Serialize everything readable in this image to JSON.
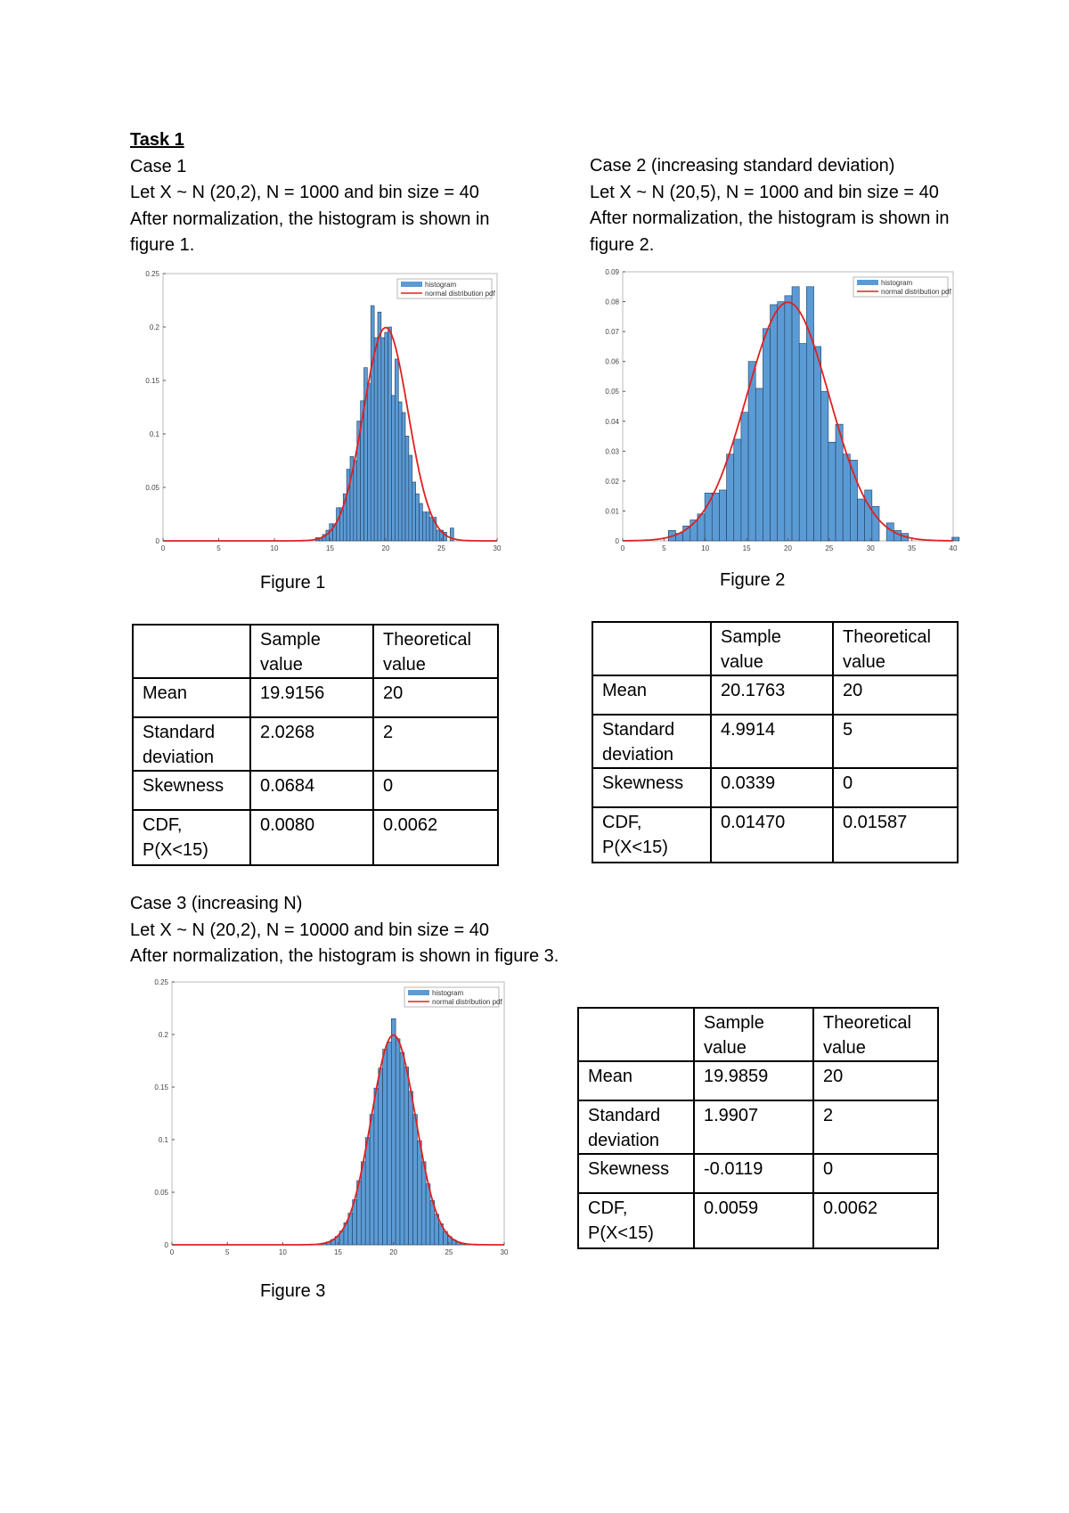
{
  "task_heading": "Task 1",
  "case1": {
    "lines": [
      "Case 1",
      "Let X ~ N (20,2), N = 1000 and bin size = 40",
      "After normalization, the histogram is shown in",
      "figure 1."
    ],
    "caption": "Figure 1",
    "table": {
      "headers": [
        "",
        "Sample value",
        "Theoretical value"
      ],
      "rows": [
        [
          "Mean",
          "19.9156",
          "20"
        ],
        [
          "Standard deviation",
          "2.0268",
          "2"
        ],
        [
          "Skewness",
          "0.0684",
          "0"
        ],
        [
          "CDF, P(X<15)",
          "0.0080",
          "0.0062"
        ]
      ]
    }
  },
  "case2": {
    "lines": [
      "Case 2 (increasing standard deviation)",
      "Let X ~ N (20,5), N = 1000 and bin size = 40",
      "After normalization, the histogram is shown in",
      "figure 2."
    ],
    "caption": "Figure 2",
    "table": {
      "headers": [
        "",
        "Sample value",
        "Theoretical value"
      ],
      "rows": [
        [
          "Mean",
          "20.1763",
          "20"
        ],
        [
          "Standard deviation",
          "4.9914",
          "5"
        ],
        [
          "Skewness",
          "0.0339",
          "0"
        ],
        [
          "CDF, P(X<15)",
          "0.01470",
          "0.01587"
        ]
      ]
    }
  },
  "case3": {
    "lines": [
      "Case 3 (increasing N)",
      "Let X ~ N (20,2), N = 10000 and bin size = 40",
      "After normalization, the histogram is shown in figure 3."
    ],
    "caption": "Figure 3",
    "table": {
      "headers": [
        "",
        "Sample value",
        "Theoretical value"
      ],
      "rows": [
        [
          "Mean",
          "19.9859",
          "20"
        ],
        [
          "Standard deviation",
          "1.9907",
          "2"
        ],
        [
          "Skewness",
          "-0.0119",
          "0"
        ],
        [
          "CDF, P(X<15)",
          "0.0059",
          "0.0062"
        ]
      ]
    }
  },
  "chart_data": [
    {
      "type": "bar",
      "legend": [
        "histogram",
        "normal distribution pdf"
      ],
      "legend_position": "top-right",
      "xlim": [
        0,
        30
      ],
      "ylim": [
        0,
        0.25
      ],
      "xticks": [
        "0",
        "5",
        "10",
        "15",
        "20",
        "25",
        "30"
      ],
      "yticks": [
        "0",
        "0.05",
        "0.1",
        "0.15",
        "0.2",
        "0.25"
      ],
      "bin_start": 13.7,
      "bin_width": 0.31,
      "values": [
        0.003,
        0.003,
        0.006,
        0.01,
        0.016,
        0.016,
        0.031,
        0.031,
        0.044,
        0.067,
        0.079,
        0.075,
        0.112,
        0.131,
        0.162,
        0.147,
        0.22,
        0.19,
        0.214,
        0.19,
        0.195,
        0.2,
        0.136,
        0.17,
        0.13,
        0.12,
        0.098,
        0.08,
        0.055,
        0.044,
        0.035,
        0.027,
        0.027,
        0.022,
        0.022,
        0.01,
        0.01,
        0.008,
        0.0,
        0.012
      ],
      "pdf": {
        "mean": 20,
        "sd": 2
      },
      "bar_color": "#5b9bd5",
      "pdf_color": "#e02020"
    },
    {
      "type": "bar",
      "legend": [
        "histogram",
        "normal distribution pdf"
      ],
      "legend_position": "top-right",
      "xlim": [
        0,
        40
      ],
      "ylim": [
        0,
        0.09
      ],
      "xticks": [
        "0",
        "5",
        "10",
        "15",
        "20",
        "25",
        "30",
        "35",
        "40"
      ],
      "yticks": [
        "0",
        "0.01",
        "0.02",
        "0.03",
        "0.04",
        "0.05",
        "0.06",
        "0.07",
        "0.08",
        "0.09"
      ],
      "bin_start": 5.53,
      "bin_width": 0.88,
      "values": [
        0.0035,
        0.0025,
        0.005,
        0.007,
        0.009,
        0.016,
        0.016,
        0.017,
        0.029,
        0.034,
        0.043,
        0.06,
        0.051,
        0.071,
        0.079,
        0.08,
        0.082,
        0.085,
        0.066,
        0.085,
        0.065,
        0.05,
        0.033,
        0.039,
        0.029,
        0.027,
        0.014,
        0.017,
        0.0115,
        0.0,
        0.006,
        0.0035,
        0.0025,
        0.0,
        0.0,
        0.0,
        0.0,
        0.0,
        0.0,
        0.0012
      ],
      "pdf": {
        "mean": 20,
        "sd": 5
      },
      "bar_color": "#5b9bd5",
      "pdf_color": "#e02020"
    },
    {
      "type": "bar",
      "legend": [
        "histogram",
        "normal distribution pdf"
      ],
      "legend_position": "top-right",
      "xlim": [
        0,
        30
      ],
      "ylim": [
        0,
        0.25
      ],
      "xticks": [
        "0",
        "5",
        "10",
        "15",
        "20",
        "25",
        "30"
      ],
      "yticks": [
        "0",
        "0.05",
        "0.1",
        "0.15",
        "0.2",
        "0.25"
      ],
      "bin_start": 12.4,
      "bin_width": 0.39,
      "values": [
        0.0002,
        0.0004,
        0.0008,
        0.0016,
        0.0028,
        0.005,
        0.008,
        0.013,
        0.021,
        0.03,
        0.043,
        0.061,
        0.079,
        0.102,
        0.124,
        0.149,
        0.168,
        0.186,
        0.193,
        0.215,
        0.196,
        0.183,
        0.169,
        0.146,
        0.124,
        0.099,
        0.079,
        0.058,
        0.042,
        0.029,
        0.02,
        0.0127,
        0.0079,
        0.0047,
        0.0027,
        0.0015,
        0.0008,
        0.0004,
        0.0002,
        0.0001
      ],
      "pdf": {
        "mean": 20,
        "sd": 2
      },
      "bar_color": "#5b9bd5",
      "pdf_color": "#e02020"
    }
  ]
}
